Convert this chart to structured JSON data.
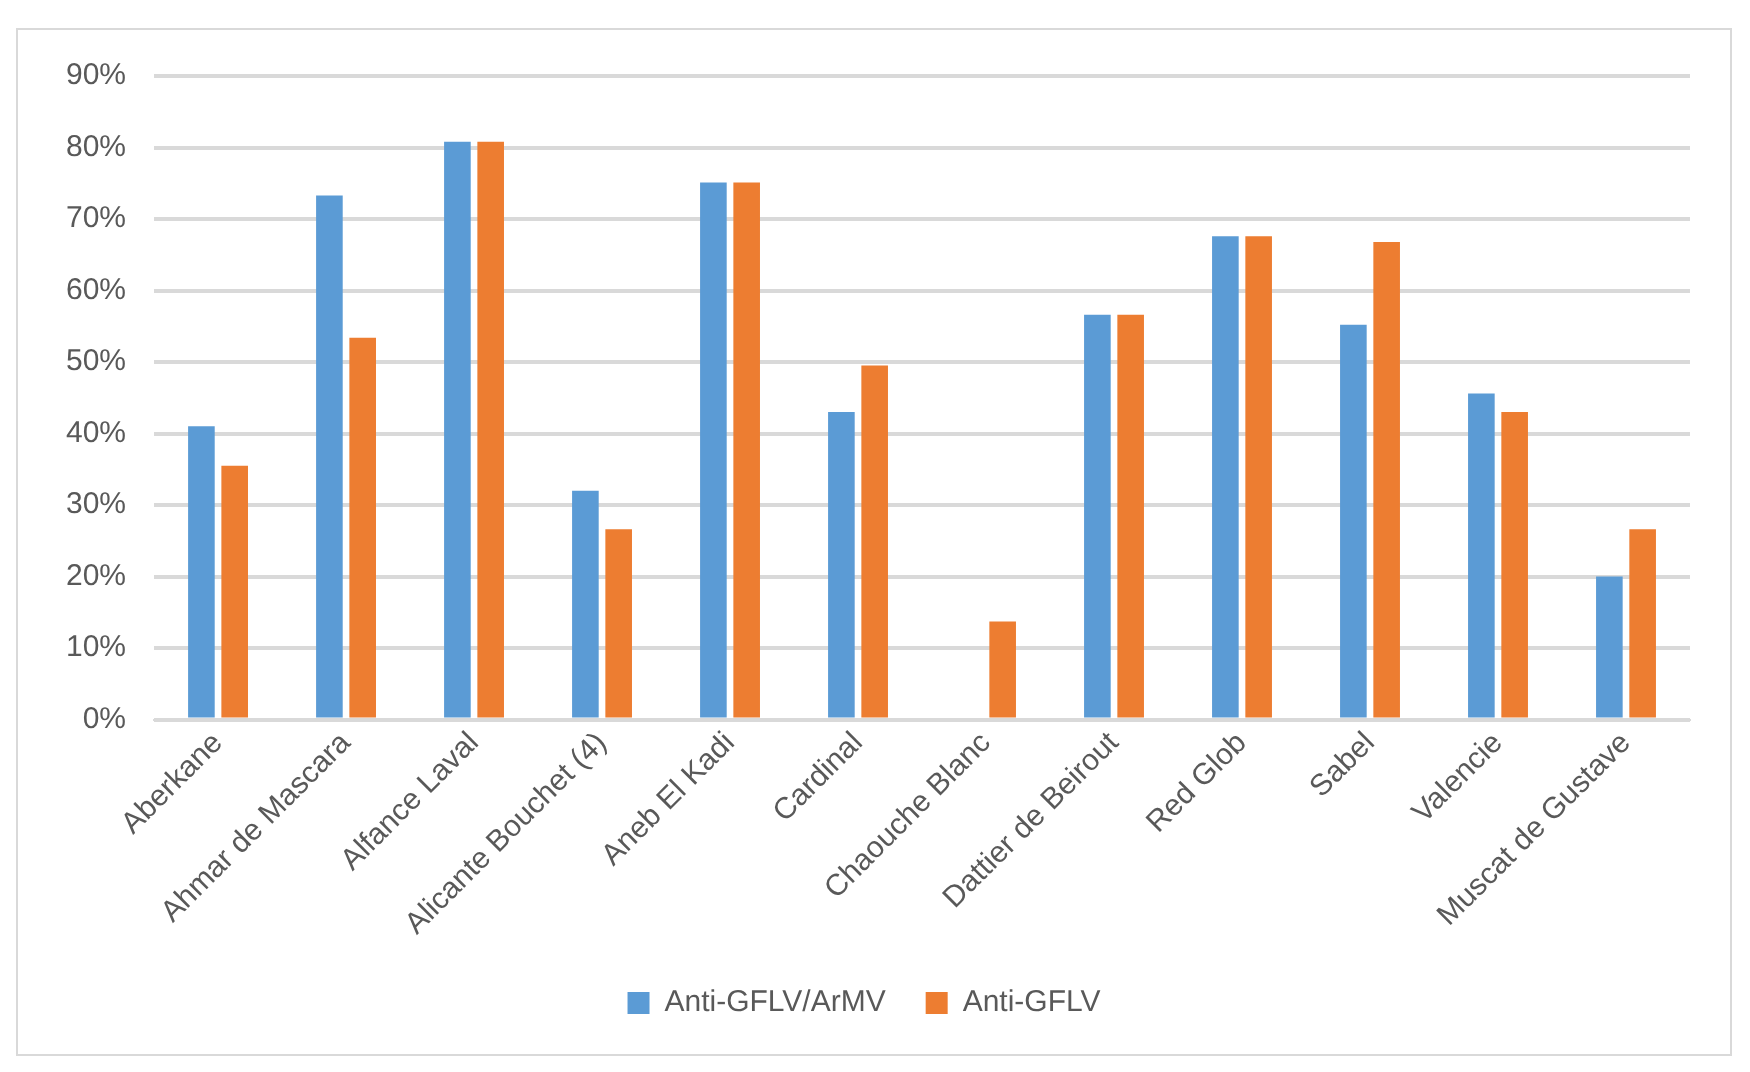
{
  "chart_data": {
    "type": "bar",
    "categories": [
      "Aberkane",
      "Ahmar de Mascara",
      "Alfance Laval",
      "Alicante Bouchet (4)",
      "Aneb El Kadi",
      "Cardinal",
      "Chaouche Blanc",
      "Dattier de Beirout",
      "Red Glob",
      "Sabel",
      "Valencie",
      "Muscat de Gustave"
    ],
    "series": [
      {
        "name": "Anti-GFLV/ArMV",
        "color": "#5b9bd5",
        "values": [
          41,
          73.3,
          80.8,
          32,
          75.1,
          43,
          0,
          56.6,
          67.6,
          55.2,
          45.6,
          20
        ]
      },
      {
        "name": "Anti-GFLV",
        "color": "#ed7d31",
        "values": [
          35.5,
          53.4,
          80.8,
          26.6,
          75.1,
          49.5,
          13.7,
          56.6,
          67.6,
          66.8,
          43,
          26.6
        ]
      }
    ],
    "ylim": [
      0,
      90
    ],
    "yticks": [
      {
        "value": 0,
        "label": "0%"
      },
      {
        "value": 10,
        "label": "10%"
      },
      {
        "value": 20,
        "label": "20%"
      },
      {
        "value": 30,
        "label": "30%"
      },
      {
        "value": 40,
        "label": "40%"
      },
      {
        "value": 50,
        "label": "50%"
      },
      {
        "value": 60,
        "label": "60%"
      },
      {
        "value": 70,
        "label": "70%"
      },
      {
        "value": 80,
        "label": "80%"
      },
      {
        "value": 90,
        "label": "90%"
      }
    ],
    "grid": "y",
    "legend": "bottom"
  }
}
